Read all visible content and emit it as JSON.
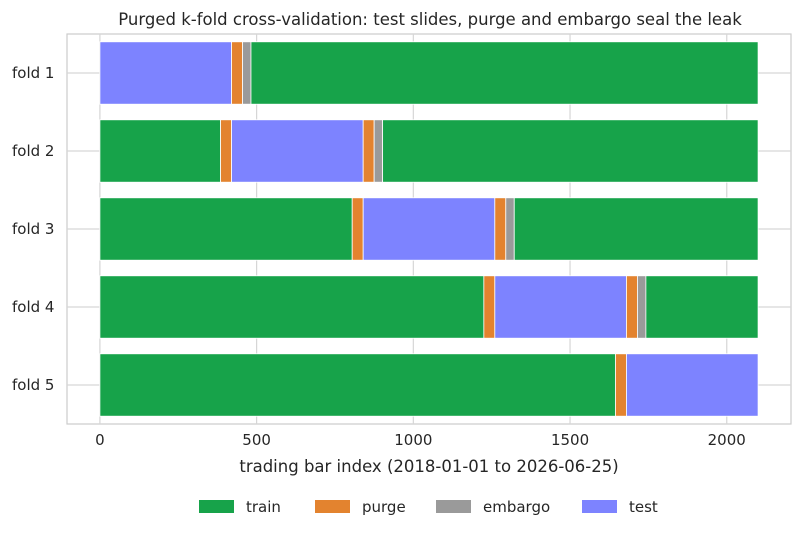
{
  "chart_data": {
    "type": "bar",
    "orientation": "horizontal-stacked",
    "title": "Purged k-fold cross-validation: test slides, purge and embargo seal the leak",
    "xlabel": "trading bar index (2018-01-01 to 2026-06-25)",
    "ylabel": "",
    "xlim": [
      -105,
      2205
    ],
    "xticks": [
      0,
      500,
      1000,
      1500,
      2000
    ],
    "xtick_labels": [
      "0",
      "500",
      "1000",
      "1500",
      "2000"
    ],
    "grid": true,
    "legend_position": "bottom-center",
    "categories": [
      "fold 1",
      "fold 2",
      "fold 3",
      "fold 4",
      "fold 5"
    ],
    "series_legend": [
      {
        "name": "train",
        "color": "#17a34a"
      },
      {
        "name": "purge",
        "color": "#e3832f"
      },
      {
        "name": "embargo",
        "color": "#9a9a9a"
      },
      {
        "name": "test",
        "color": "#7d83ff"
      }
    ],
    "segments": [
      [
        {
          "type": "test",
          "start": 0,
          "end": 420
        },
        {
          "type": "purge",
          "start": 420,
          "end": 455
        },
        {
          "type": "embargo",
          "start": 455,
          "end": 482
        },
        {
          "type": "train",
          "start": 482,
          "end": 2100
        }
      ],
      [
        {
          "type": "train",
          "start": 0,
          "end": 385
        },
        {
          "type": "purge",
          "start": 385,
          "end": 420
        },
        {
          "type": "test",
          "start": 420,
          "end": 840
        },
        {
          "type": "purge",
          "start": 840,
          "end": 875
        },
        {
          "type": "embargo",
          "start": 875,
          "end": 902
        },
        {
          "type": "train",
          "start": 902,
          "end": 2100
        }
      ],
      [
        {
          "type": "train",
          "start": 0,
          "end": 805
        },
        {
          "type": "purge",
          "start": 805,
          "end": 840
        },
        {
          "type": "test",
          "start": 840,
          "end": 1260
        },
        {
          "type": "purge",
          "start": 1260,
          "end": 1295
        },
        {
          "type": "embargo",
          "start": 1295,
          "end": 1322
        },
        {
          "type": "train",
          "start": 1322,
          "end": 2100
        }
      ],
      [
        {
          "type": "train",
          "start": 0,
          "end": 1225
        },
        {
          "type": "purge",
          "start": 1225,
          "end": 1260
        },
        {
          "type": "test",
          "start": 1260,
          "end": 1680
        },
        {
          "type": "purge",
          "start": 1680,
          "end": 1715
        },
        {
          "type": "embargo",
          "start": 1715,
          "end": 1742
        },
        {
          "type": "train",
          "start": 1742,
          "end": 2100
        }
      ],
      [
        {
          "type": "train",
          "start": 0,
          "end": 1645
        },
        {
          "type": "purge",
          "start": 1645,
          "end": 1680
        },
        {
          "type": "test",
          "start": 1680,
          "end": 2100
        }
      ]
    ]
  }
}
